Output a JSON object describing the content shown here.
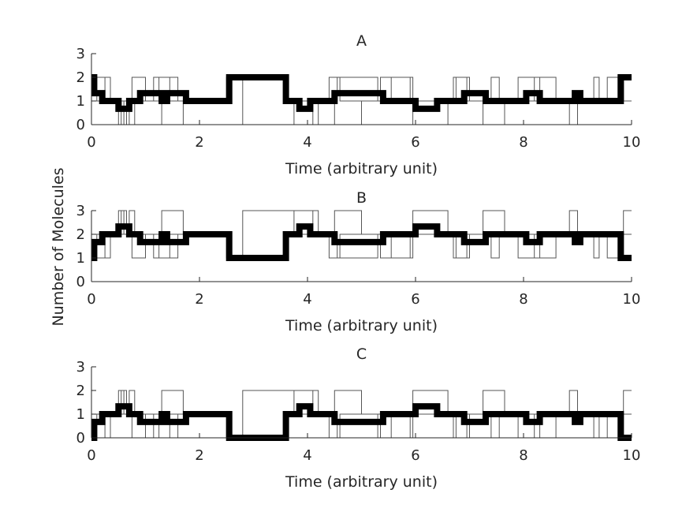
{
  "figure": {
    "ylabel": "Number of Molecules"
  },
  "chart_data": [
    {
      "type": "line",
      "title": "A",
      "xlabel": "Time (arbitrary unit)",
      "xlim": [
        0,
        10
      ],
      "ylim": [
        0,
        3
      ],
      "xticks": [
        0,
        2,
        4,
        6,
        8,
        10
      ],
      "yticks": [
        0,
        1,
        2,
        3
      ],
      "grid": false,
      "mean_series": {
        "x": [
          0,
          0.05,
          0.2,
          0.4,
          0.5,
          0.7,
          0.9,
          1.05,
          1.3,
          1.4,
          1.75,
          2.55,
          3.6,
          3.75,
          3.85,
          4.05,
          4.5,
          5.4,
          6.0,
          6.4,
          6.9,
          7.0,
          7.3,
          7.4,
          7.85,
          8.05,
          8.3,
          8.95,
          9.05,
          9.8
        ],
        "y": [
          2,
          1.33,
          1.0,
          1.0,
          0.67,
          1.0,
          1.33,
          1.33,
          1.0,
          1.33,
          1.0,
          2.0,
          1.0,
          1.0,
          0.67,
          1.0,
          1.33,
          1.0,
          0.67,
          1.0,
          1.33,
          1.33,
          1.0,
          1.0,
          1.0,
          1.33,
          1.0,
          1.33,
          1.0,
          2.0
        ],
        "end": 10
      },
      "trajectories": [
        {
          "x": [
            0,
            0.1,
            0.35,
            0.7,
            0.8,
            1.25,
            1.6,
            2.1,
            2.5,
            3.3,
            3.65,
            4.4,
            4.6,
            5.0,
            5.35,
            5.9,
            6.35,
            6.7,
            6.95,
            7.4,
            7.55,
            8.2,
            8.3,
            8.7,
            9.3,
            9.4,
            9.75
          ],
          "y": [
            1,
            2,
            1,
            0,
            1,
            2,
            1,
            1,
            2,
            2,
            1,
            2,
            1,
            1,
            2,
            1,
            1,
            2,
            1,
            2,
            1,
            2,
            1,
            1,
            2,
            1,
            2
          ],
          "end": 10
        },
        {
          "x": [
            0,
            0.25,
            0.5,
            0.6,
            0.75,
            1.0,
            1.15,
            1.45,
            2.2,
            2.55,
            3.6,
            3.75,
            4.1,
            4.35,
            4.55,
            5.3,
            5.55,
            5.95,
            6.6,
            6.75,
            7.0,
            7.5,
            7.9,
            8.6,
            9.1,
            9.55,
            9.85
          ],
          "y": [
            2,
            1,
            0,
            1,
            2,
            1,
            2,
            1,
            1,
            2,
            1,
            0,
            1,
            1,
            2,
            1,
            2,
            0,
            1,
            2,
            1,
            1,
            2,
            1,
            1,
            2,
            1
          ],
          "end": 10
        },
        {
          "x": [
            0,
            0.3,
            0.55,
            0.65,
            0.8,
            1.3,
            1.7,
            2.55,
            2.8,
            4.0,
            4.2,
            4.5,
            5.0,
            5.8,
            6.2,
            7.25,
            7.65,
            8.35,
            8.85,
            9.0,
            9.2,
            9.85
          ],
          "y": [
            1,
            1,
            0,
            1,
            1,
            0,
            1,
            2,
            0,
            0,
            1,
            0,
            1,
            1,
            1,
            0,
            1,
            1,
            0,
            1,
            1,
            2
          ],
          "end": 10
        }
      ]
    },
    {
      "type": "line",
      "title": "B",
      "xlabel": "Time (arbitrary unit)",
      "xlim": [
        0,
        10
      ],
      "ylim": [
        0,
        3
      ],
      "xticks": [
        0,
        2,
        4,
        6,
        8,
        10
      ],
      "yticks": [
        0,
        1,
        2,
        3
      ],
      "grid": false,
      "mean_series": {
        "x": [
          0,
          0.05,
          0.2,
          0.4,
          0.5,
          0.7,
          0.9,
          1.05,
          1.3,
          1.4,
          1.75,
          2.55,
          3.6,
          3.75,
          3.85,
          4.05,
          4.5,
          5.4,
          6.0,
          6.4,
          6.9,
          7.0,
          7.3,
          7.4,
          7.85,
          8.05,
          8.3,
          8.95,
          9.05,
          9.8
        ],
        "y": [
          1,
          1.67,
          2.0,
          2.0,
          2.33,
          2.0,
          1.67,
          1.67,
          2.0,
          1.67,
          2.0,
          1.0,
          2.0,
          2.0,
          2.33,
          2.0,
          1.67,
          2.0,
          2.33,
          2.0,
          1.67,
          1.67,
          2.0,
          2.0,
          2.0,
          1.67,
          2.0,
          1.67,
          2.0,
          1.0
        ],
        "end": 10
      },
      "trajectories": [
        {
          "x": [
            0,
            0.1,
            0.35,
            0.7,
            0.8,
            1.25,
            1.6,
            2.1,
            2.5,
            3.3,
            3.65,
            4.4,
            4.6,
            5.0,
            5.35,
            5.9,
            6.35,
            6.7,
            6.95,
            7.4,
            7.55,
            8.2,
            8.3,
            8.7,
            9.3,
            9.4,
            9.75
          ],
          "y": [
            2,
            1,
            2,
            3,
            2,
            1,
            2,
            2,
            1,
            1,
            2,
            1,
            2,
            2,
            1,
            2,
            2,
            1,
            2,
            1,
            2,
            1,
            2,
            2,
            1,
            2,
            1
          ],
          "end": 10
        },
        {
          "x": [
            0,
            0.25,
            0.5,
            0.6,
            0.75,
            1.0,
            1.15,
            1.45,
            2.2,
            2.55,
            3.6,
            3.75,
            4.1,
            4.35,
            4.55,
            5.3,
            5.55,
            5.95,
            6.6,
            6.75,
            7.0,
            7.5,
            7.9,
            8.6,
            9.1,
            9.55,
            9.85
          ],
          "y": [
            1,
            2,
            3,
            2,
            1,
            2,
            1,
            2,
            2,
            1,
            2,
            3,
            2,
            2,
            1,
            2,
            1,
            3,
            2,
            1,
            2,
            2,
            1,
            2,
            2,
            1,
            2
          ],
          "end": 10
        },
        {
          "x": [
            0,
            0.3,
            0.55,
            0.65,
            0.8,
            1.3,
            1.7,
            2.55,
            2.8,
            4.0,
            4.2,
            4.5,
            5.0,
            5.8,
            6.2,
            7.25,
            7.65,
            8.35,
            8.85,
            9.0,
            9.2,
            9.85
          ],
          "y": [
            2,
            2,
            3,
            2,
            2,
            3,
            2,
            1,
            3,
            3,
            2,
            3,
            2,
            2,
            2,
            3,
            2,
            2,
            3,
            2,
            2,
            3
          ],
          "end": 10
        }
      ]
    },
    {
      "type": "line",
      "title": "C",
      "xlabel": "Time (arbitrary unit)",
      "xlim": [
        0,
        10
      ],
      "ylim": [
        0,
        3
      ],
      "xticks": [
        0,
        2,
        4,
        6,
        8,
        10
      ],
      "yticks": [
        0,
        1,
        2,
        3
      ],
      "grid": false,
      "mean_series": {
        "x": [
          0,
          0.05,
          0.2,
          0.4,
          0.5,
          0.7,
          0.9,
          1.05,
          1.3,
          1.4,
          1.75,
          2.55,
          3.6,
          3.75,
          3.85,
          4.05,
          4.5,
          5.4,
          6.0,
          6.4,
          6.9,
          7.0,
          7.3,
          7.4,
          7.85,
          8.05,
          8.3,
          8.95,
          9.05,
          9.8
        ],
        "y": [
          0,
          0.67,
          1.0,
          1.0,
          1.33,
          1.0,
          0.67,
          0.67,
          1.0,
          0.67,
          1.0,
          0.0,
          1.0,
          1.0,
          1.33,
          1.0,
          0.67,
          1.0,
          1.33,
          1.0,
          0.67,
          0.67,
          1.0,
          1.0,
          1.0,
          0.67,
          1.0,
          0.67,
          1.0,
          0.0
        ],
        "end": 10
      },
      "trajectories": [
        {
          "x": [
            0,
            0.1,
            0.35,
            0.7,
            0.8,
            1.25,
            1.6,
            2.1,
            2.5,
            3.3,
            3.65,
            4.4,
            4.6,
            5.0,
            5.35,
            5.9,
            6.35,
            6.7,
            6.95,
            7.4,
            7.55,
            8.2,
            8.3,
            8.7,
            9.3,
            9.4,
            9.75
          ],
          "y": [
            1,
            0,
            1,
            2,
            1,
            0,
            1,
            1,
            0,
            0,
            1,
            0,
            1,
            1,
            0,
            1,
            1,
            0,
            1,
            0,
            1,
            0,
            1,
            1,
            0,
            1,
            0
          ],
          "end": 10
        },
        {
          "x": [
            0,
            0.25,
            0.5,
            0.6,
            0.75,
            1.0,
            1.15,
            1.45,
            2.2,
            2.55,
            3.6,
            3.75,
            4.1,
            4.35,
            4.55,
            5.3,
            5.55,
            5.95,
            6.6,
            6.75,
            7.0,
            7.5,
            7.9,
            8.6,
            9.1,
            9.55,
            9.85
          ],
          "y": [
            0,
            1,
            2,
            1,
            0,
            1,
            0,
            1,
            1,
            0,
            1,
            2,
            1,
            1,
            0,
            1,
            0,
            2,
            1,
            0,
            1,
            1,
            0,
            1,
            1,
            0,
            1
          ],
          "end": 10
        },
        {
          "x": [
            0,
            0.3,
            0.55,
            0.65,
            0.8,
            1.3,
            1.7,
            2.55,
            2.8,
            4.0,
            4.2,
            4.5,
            5.0,
            5.8,
            6.2,
            7.25,
            7.65,
            8.35,
            8.85,
            9.0,
            9.2,
            9.85
          ],
          "y": [
            1,
            1,
            2,
            1,
            1,
            2,
            1,
            0,
            2,
            2,
            1,
            2,
            1,
            1,
            1,
            2,
            1,
            1,
            2,
            1,
            1,
            2
          ],
          "end": 10
        }
      ]
    }
  ]
}
